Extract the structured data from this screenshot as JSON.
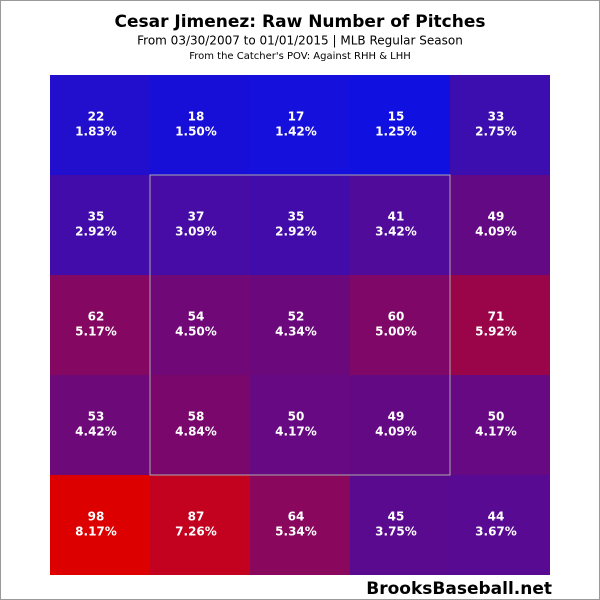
{
  "chart_data": {
    "type": "heatmap",
    "title": "Cesar Jimenez: Raw Number of Pitches",
    "subtitle": "From 03/30/2007 to 01/01/2015 | MLB Regular Season",
    "note": "From the Catcher's POV:  Against RHH & LHH",
    "source": "BrooksBaseball.net",
    "color_low": "#1010e0",
    "color_high": "#dd0000",
    "rows": [
      {
        "values": [
          22,
          18,
          17,
          15,
          33
        ],
        "percent_labels": [
          "1.83%",
          "1.50%",
          "1.42%",
          "1.25%",
          "2.75%"
        ]
      },
      {
        "values": [
          35,
          37,
          35,
          41,
          49
        ],
        "percent_labels": [
          "2.92%",
          "3.09%",
          "2.92%",
          "3.42%",
          "4.09%"
        ]
      },
      {
        "values": [
          62,
          54,
          52,
          60,
          71
        ],
        "percent_labels": [
          "5.17%",
          "4.50%",
          "4.34%",
          "5.00%",
          "5.92%"
        ]
      },
      {
        "values": [
          53,
          58,
          50,
          49,
          50
        ],
        "percent_labels": [
          "4.42%",
          "4.84%",
          "4.17%",
          "4.09%",
          "4.17%"
        ]
      },
      {
        "values": [
          98,
          87,
          64,
          45,
          44
        ],
        "percent_labels": [
          "8.17%",
          "7.26%",
          "5.34%",
          "3.75%",
          "3.67%"
        ]
      }
    ]
  }
}
